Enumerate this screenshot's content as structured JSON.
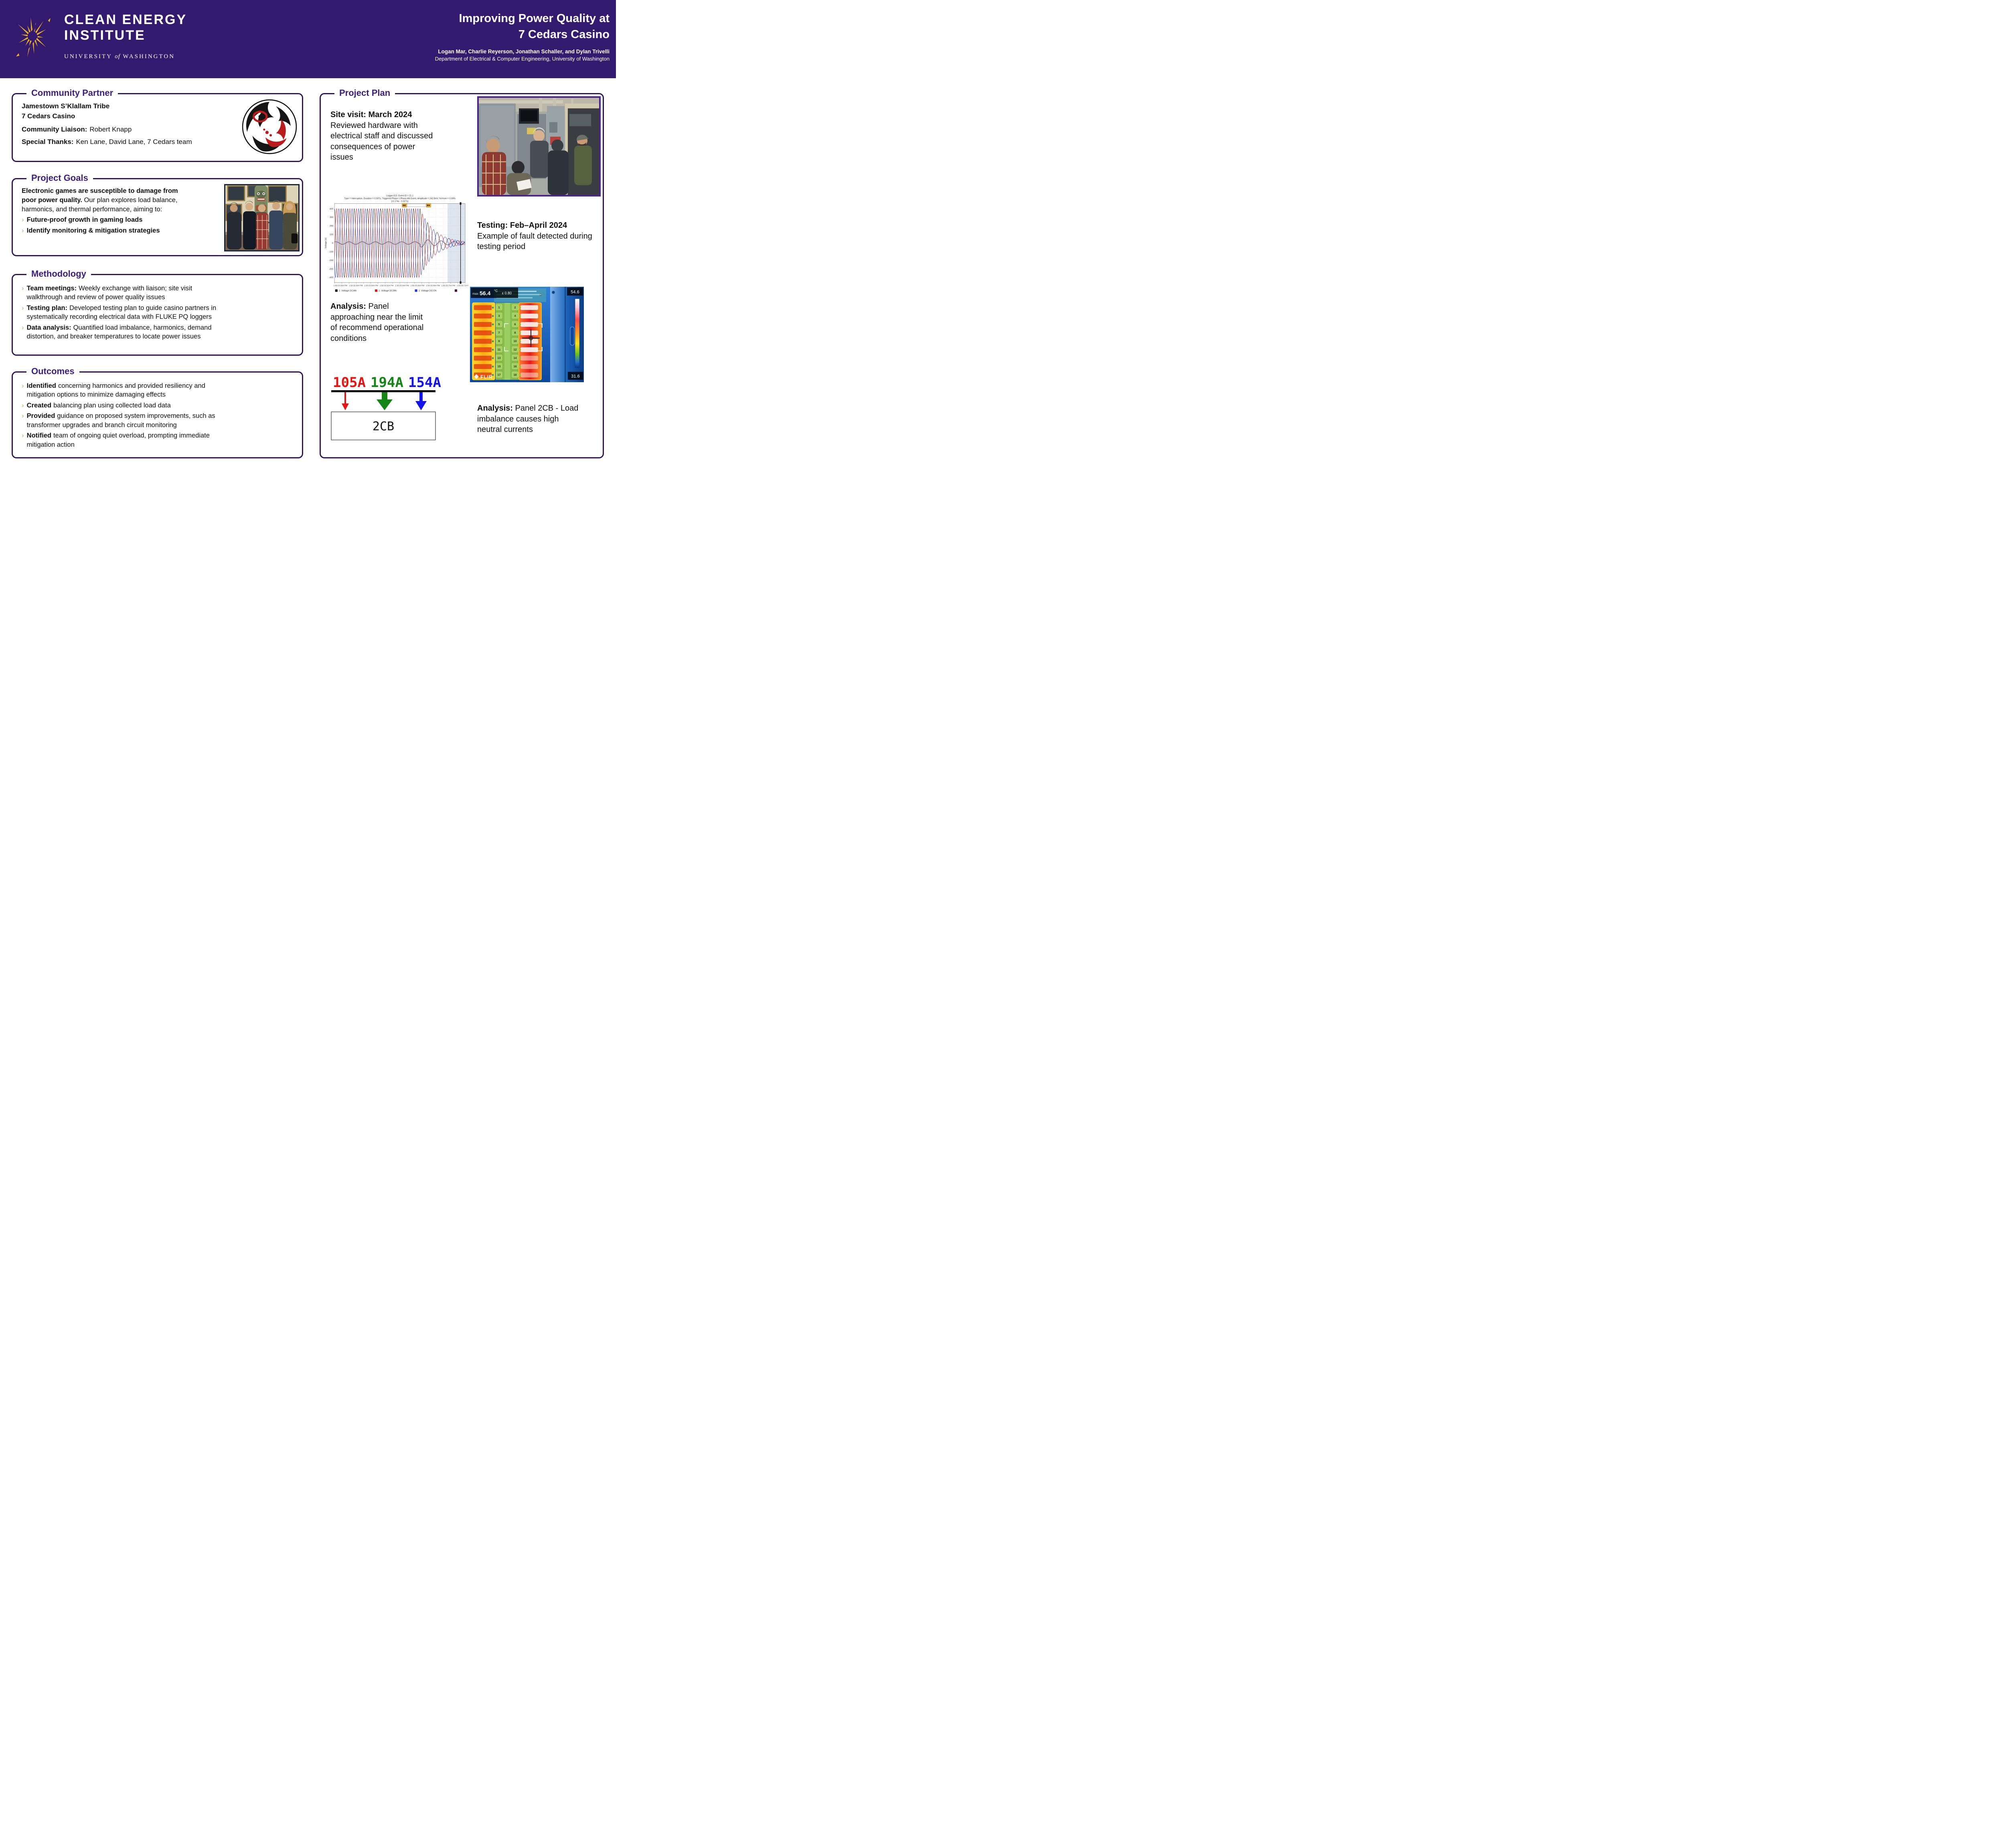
{
  "colors": {
    "header_purple": "#341a6e",
    "title_purple": "#3d1e7d",
    "box_border": "#2c1550",
    "gold": "#f0b429",
    "chevron_gold": "#d8bd85"
  },
  "icons": {
    "bullet": "›"
  },
  "header": {
    "logo_line1": "CLEAN ENERGY",
    "logo_line2": "INSTITUTE",
    "university_1": "UNIVERSITY",
    "university_of": "of",
    "university_2": "WASHINGTON",
    "title_line1": "Improving Power Quality at",
    "title_line2": "7 Cedars Casino",
    "authors": "Logan Mar, Charlie Reyerson, Jonathan Schaller, and Dylan Trivelli",
    "affiliation": "Department of Electrical & Computer Engineering, University of Washington"
  },
  "sections": {
    "community_partner": {
      "title": "Community Partner",
      "org1": "Jamestown S’Klallam Tribe",
      "org2": "7 Cedars Casino",
      "liaison_label": "Community Liaison:",
      "liaison_value": "Robert Knapp",
      "thanks_label": "Special Thanks:",
      "thanks_value": "Ken Lane, David Lane, 7 Cedars team"
    },
    "project_goals": {
      "title": "Project Goals",
      "intro_bold": "Electronic games are susceptible to damage from poor power quality.",
      "intro_rest": "Our plan explores load balance, harmonics, and thermal performance, aiming to:",
      "bullets": [
        "Future-proof growth in gaming loads",
        "Identify monitoring & mitigation strategies"
      ]
    },
    "methodology": {
      "title": "Methodology",
      "bullets": [
        {
          "label": "Team meetings:",
          "text": "Weekly exchange with liaison; site visit walkthrough and review of power quality issues"
        },
        {
          "label": "Testing plan:",
          "text": "Developed testing plan to guide casino partners in systematically recording electrical data with FLUKE PQ loggers"
        },
        {
          "label": "Data analysis:",
          "text": "Quantified load imbalance, harmonics, demand distortion, and breaker temperatures to locate power issues"
        }
      ]
    },
    "outcomes": {
      "title": "Outcomes",
      "bullets": [
        {
          "label": "Identified",
          "text": "concerning harmonics and provided resiliency and mitigation options to minimize damaging effects"
        },
        {
          "label": "Created",
          "text": "balancing plan using collected load data"
        },
        {
          "label": "Provided",
          "text": "guidance on proposed system improvements, such as transformer upgrades and branch circuit monitoring"
        },
        {
          "label": "Notified",
          "text": "team of ongoing quiet overload, prompting immediate mitigation action"
        }
      ]
    },
    "project_plan": {
      "title": "Project Plan",
      "site_visit_heading": "Site visit: March 2024",
      "site_visit_text": "Reviewed hardware with electrical staff and discussed consequences of power issues",
      "testing_heading": "Testing: Feb–April 2024",
      "testing_text": "Example of fault detected during testing period",
      "analysis1_label": "Analysis:",
      "analysis1_text": "Panel approaching near the limit of recommend operational conditions",
      "analysis2_label": "Analysis:",
      "analysis2_text": "Panel 2CB - Load imbalance causes high neutral currents"
    }
  },
  "chart_data": {
    "type": "line",
    "title_lines": [
      "Logger.015: Event ID = 21.1",
      "Type = Interruption, Duration = 0.597s, Triggered Phase = Phase AN Event, Amplitude = 242.8mV, %Vnom = 0.09%",
      "[-0.174s - 0.027s]"
    ],
    "ylabel": "Voltage [V]",
    "ylim": [
      -460,
      460
    ],
    "yticks": [
      400,
      300,
      200,
      100,
      0,
      -100,
      -200,
      -300,
      -400
    ],
    "x_ticks": [
      "1:50:33.564 PM",
      "1:50:33.584 PM",
      "1:50:33.604 PM",
      "1:50:33.624 PM",
      "1:50:33.644 PM",
      "1:50:33.664 PM",
      "1:50:33.684 PM",
      "1:50:33.704 PM",
      "1:50:33.724 PM"
    ],
    "series": [
      {
        "name": "1: Voltage [V] AN",
        "color": "#111111",
        "phase_deg": 90
      },
      {
        "name": "1: Voltage [V] BN",
        "color": "#dd1111",
        "phase_deg": -30
      },
      {
        "name": "1: Voltage [V] CN",
        "color": "#2233dd",
        "phase_deg": 210
      }
    ],
    "neutral": {
      "name": "",
      "color": "#4a1040"
    },
    "amplitude_v": 400,
    "event_fraction": 0.655,
    "cycles_pre_event": 13,
    "grid": true,
    "legend_position": "bottom",
    "description": "Three-phase voltages AN/BN/CN (±400 V peak, 60 Hz) collapse and ring down after an interruption event; small neutral trace stays near 0 V"
  },
  "load_diagram": {
    "currents": [
      {
        "value": "105A",
        "color": "#e81313"
      },
      {
        "value": "194A",
        "color": "#158515"
      },
      {
        "value": "154A",
        "color": "#1414e8"
      }
    ],
    "panel_label": "2CB"
  },
  "thermal": {
    "max_label": "max",
    "max_value": "56.4",
    "unit": "°C",
    "emissivity": "ε 0.80",
    "scale_max": "54.6",
    "scale_min": "31.6",
    "brand": "FLIR",
    "left_numbers": [
      "1",
      "3",
      "5",
      "7",
      "9",
      "11",
      "13",
      "15",
      "17"
    ],
    "right_numbers": [
      "2",
      "4",
      "6",
      "8",
      "10",
      "12",
      "14",
      "16",
      "18"
    ]
  }
}
